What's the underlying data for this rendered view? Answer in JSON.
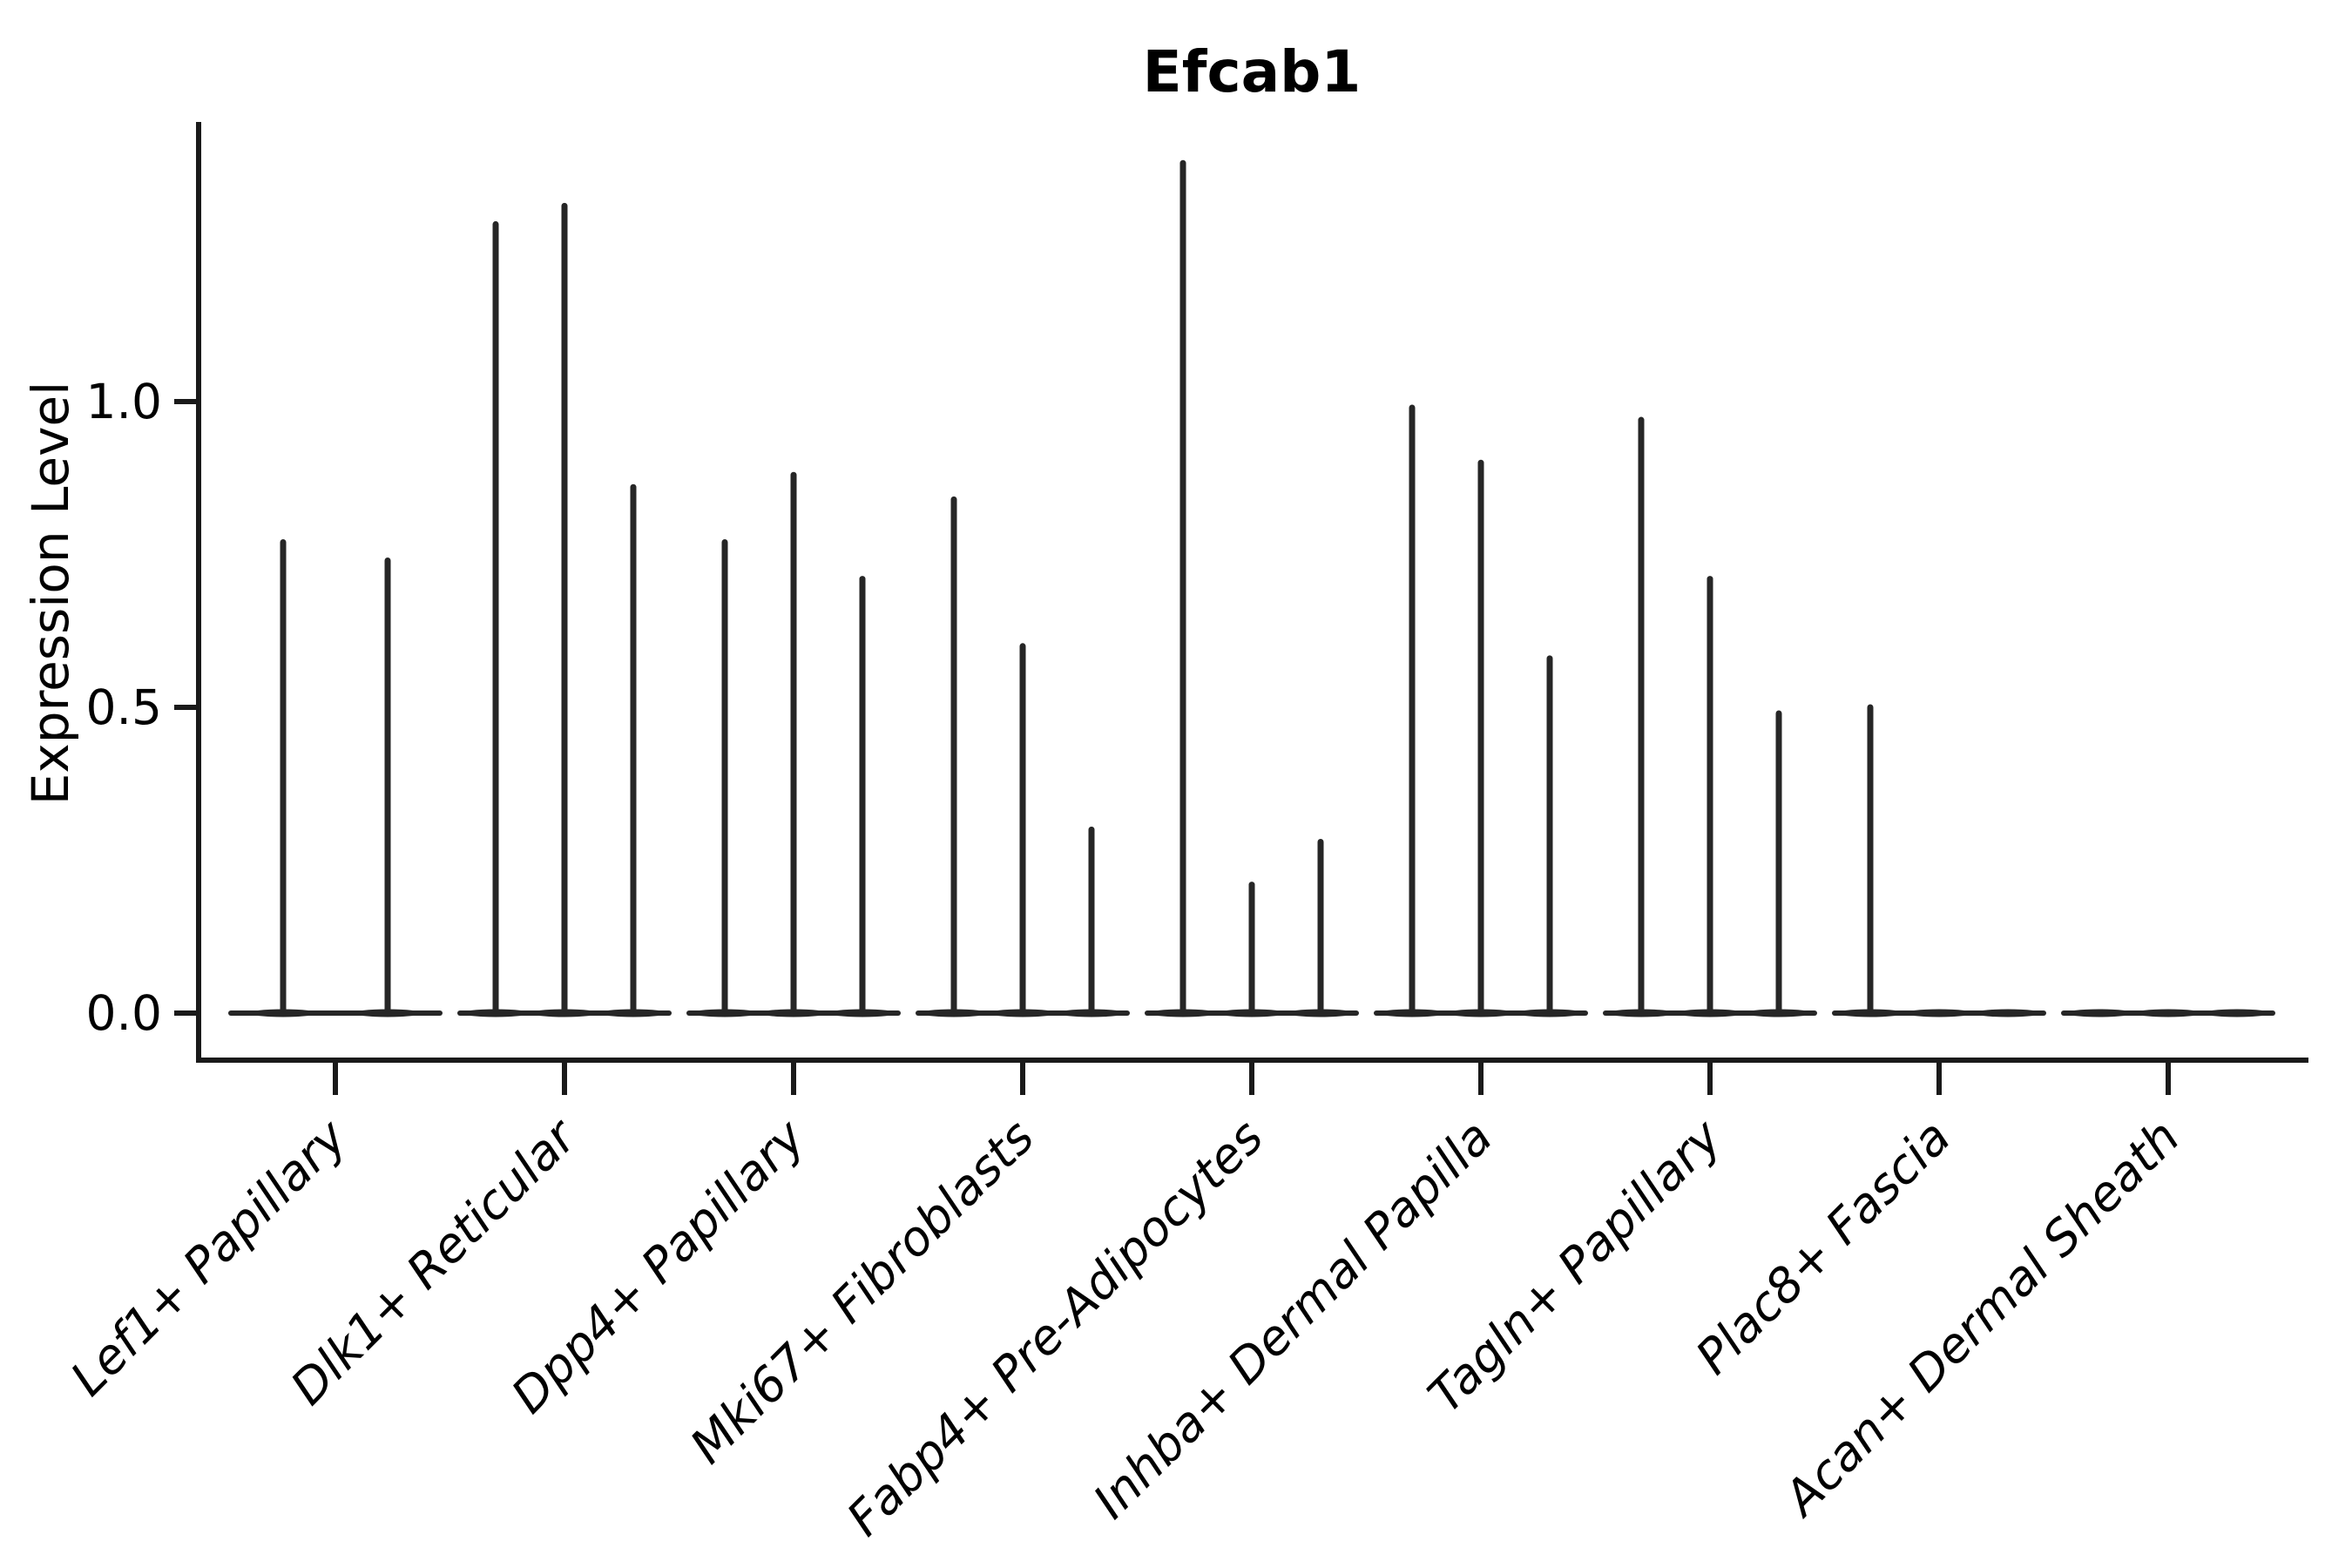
{
  "title": "Efcab1",
  "colors": {
    "line": "#262626",
    "spine": "#1a1a1a",
    "text": "#000000",
    "background": "#ffffff"
  },
  "chart_data": {
    "type": "violin",
    "title": "Efcab1",
    "xlabel": "",
    "ylabel": "Expression Level",
    "ylim": [
      -0.07,
      1.46
    ],
    "yticks": [
      "0.0",
      "0.5",
      "1.0"
    ],
    "ytick_values": [
      0.0,
      0.5,
      1.0
    ],
    "grid": false,
    "legend": "none",
    "categories": [
      "Lef1+ Papillary",
      "Dlk1+ Reticular",
      "Dpp4+ Papillary",
      "Mki67+ Fibroblasts",
      "Fabp4+ Pre-Adipocytes",
      "Inhba+ Dermal Papilla",
      "Tagln+ Papillary",
      "Plac8+ Fascia",
      "Acan+ Dermal Sheath"
    ],
    "series": [
      {
        "category": "Lef1+ Papillary",
        "violin_max_expression": [
          0.77,
          0.74
        ]
      },
      {
        "category": "Dlk1+ Reticular",
        "violin_max_expression": [
          1.29,
          1.32,
          0.86
        ]
      },
      {
        "category": "Dpp4+ Papillary",
        "violin_max_expression": [
          0.77,
          0.88,
          0.71
        ]
      },
      {
        "category": "Mki67+ Fibroblasts",
        "violin_max_expression": [
          0.84,
          0.6,
          0.3
        ]
      },
      {
        "category": "Fabp4+ Pre-Adipocytes",
        "violin_max_expression": [
          1.39,
          0.21,
          0.28
        ]
      },
      {
        "category": "Inhba+ Dermal Papilla",
        "violin_max_expression": [
          0.99,
          0.9,
          0.58
        ]
      },
      {
        "category": "Tagln+ Papillary",
        "violin_max_expression": [
          0.97,
          0.71,
          0.49
        ]
      },
      {
        "category": "Plac8+ Fascia",
        "violin_max_expression": [
          0.5,
          0.0,
          0.0
        ]
      },
      {
        "category": "Acan+ Dermal Sheath",
        "violin_max_expression": [
          0.0,
          0.0,
          0.0
        ]
      }
    ]
  }
}
